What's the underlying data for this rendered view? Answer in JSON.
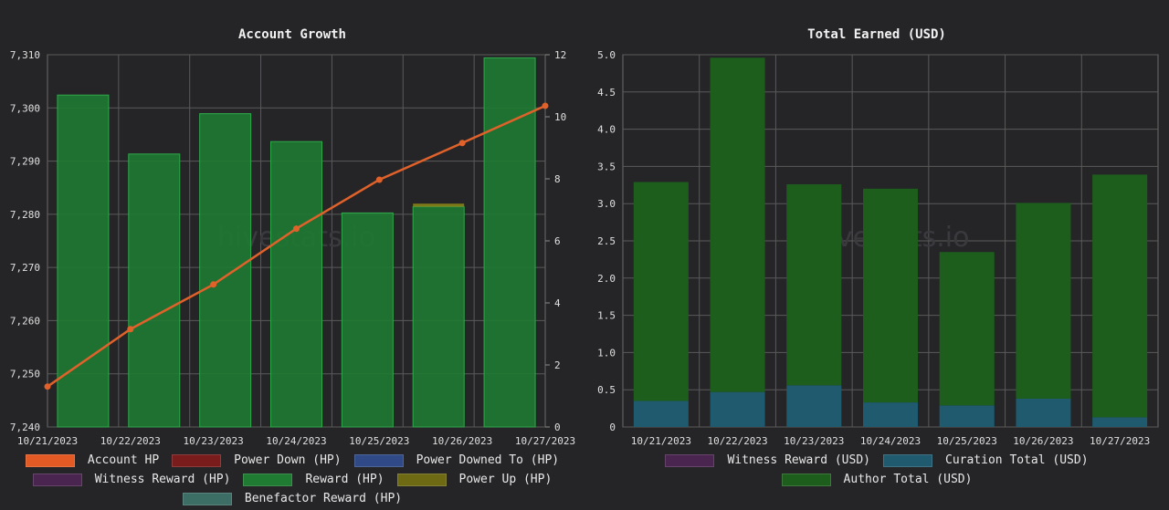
{
  "chart_data": [
    {
      "type": "bar",
      "title": "Account Growth",
      "watermark": "hivestats.io",
      "categories": [
        "10/21/2023",
        "10/22/2023",
        "10/23/2023",
        "10/24/2023",
        "10/25/2023",
        "10/26/2023",
        "10/27/2023"
      ],
      "y_left": {
        "ylim": [
          7240,
          7310
        ],
        "ticks": [
          7240,
          7250,
          7260,
          7270,
          7280,
          7290,
          7300,
          7310
        ],
        "tick_labels": [
          "7,240",
          "7,250",
          "7,260",
          "7,270",
          "7,280",
          "7,290",
          "7,300",
          "7,310"
        ]
      },
      "y_right": {
        "ylim": [
          0,
          12
        ],
        "ticks": [
          0,
          2,
          4,
          6,
          8,
          10,
          12
        ],
        "tick_labels": [
          "0",
          "2",
          "4",
          "6",
          "8",
          "10",
          "12"
        ]
      },
      "series": [
        {
          "name": "Account HP",
          "type": "line",
          "axis": "left",
          "color": "#e0622a",
          "values": [
            7247.6,
            7258.4,
            7266.8,
            7277.3,
            7286.5,
            7293.4,
            7300.4
          ]
        },
        {
          "name": "Reward (HP)",
          "type": "bar",
          "axis": "right",
          "color": "#1f7a32",
          "values": [
            10.7,
            8.8,
            10.1,
            9.2,
            6.9,
            7.1,
            11.9
          ]
        },
        {
          "name": "Power Up (HP)",
          "type": "bar",
          "axis": "right",
          "color": "#7d7a1a",
          "values": [
            0,
            0,
            0,
            0,
            0,
            0.1,
            0
          ]
        }
      ],
      "legend": [
        {
          "label": "Account HP",
          "color": "#e35a24"
        },
        {
          "label": "Power Down (HP)",
          "color": "#7a1c1c"
        },
        {
          "label": "Power Downed To (HP)",
          "color": "#2f4a86"
        },
        {
          "label": "Witness Reward (HP)",
          "color": "#4a2550"
        },
        {
          "label": "Reward (HP)",
          "color": "#1f7a32"
        },
        {
          "label": "Power Up (HP)",
          "color": "#6e6a14"
        },
        {
          "label": "Benefactor Reward (HP)",
          "color": "#3d6e66"
        }
      ]
    },
    {
      "type": "bar",
      "stacked": true,
      "title": "Total Earned (USD)",
      "watermark": "hivestats.io",
      "categories": [
        "10/21/2023",
        "10/22/2023",
        "10/23/2023",
        "10/24/2023",
        "10/25/2023",
        "10/26/2023",
        "10/27/2023"
      ],
      "ylim": [
        0,
        5
      ],
      "ticks": [
        0,
        0.5,
        1,
        1.5,
        2,
        2.5,
        3,
        3.5,
        4,
        4.5,
        5
      ],
      "tick_labels": [
        "0",
        "0.5",
        "1.0",
        "1.5",
        "2.0",
        "2.5",
        "3.0",
        "3.5",
        "4.0",
        "4.5",
        "5.0"
      ],
      "series": [
        {
          "name": "Curation Total (USD)",
          "color": "#1f5a6e",
          "values": [
            0.35,
            0.47,
            0.56,
            0.33,
            0.29,
            0.38,
            0.13
          ]
        },
        {
          "name": "Author Total (USD)",
          "color": "#1d5e1d",
          "values": [
            2.94,
            4.49,
            2.7,
            2.87,
            2.06,
            2.63,
            3.26
          ]
        },
        {
          "name": "Witness Reward (USD)",
          "color": "#4a2550",
          "values": [
            0,
            0,
            0,
            0,
            0,
            0,
            0
          ]
        }
      ],
      "legend": [
        {
          "label": "Witness Reward (USD)",
          "color": "#4a2550"
        },
        {
          "label": "Curation Total (USD)",
          "color": "#1f5a6e"
        },
        {
          "label": "Author Total (USD)",
          "color": "#1d5e1d"
        }
      ]
    }
  ]
}
